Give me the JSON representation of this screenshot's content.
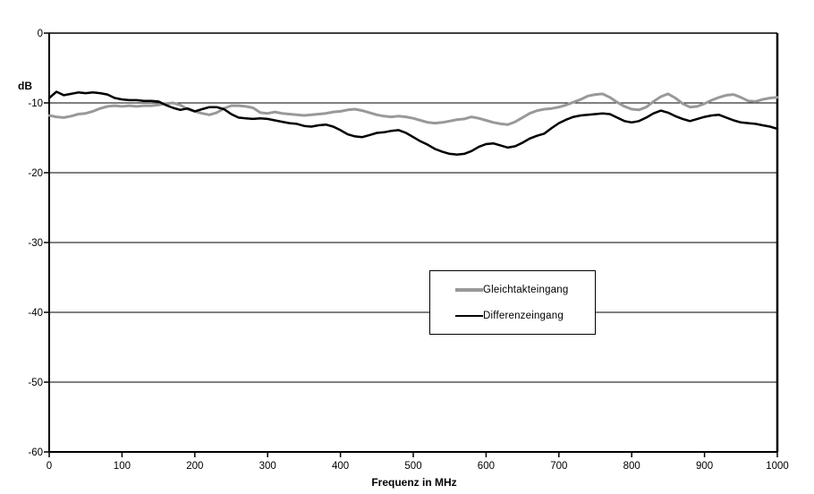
{
  "figure": {
    "y_axis_unit_label": "dB",
    "x_axis_title": "Frequenz in MHz"
  },
  "chart_data": {
    "type": "line",
    "title": "",
    "xlabel": "Frequenz in MHz",
    "ylabel": "dB",
    "xlim": [
      0,
      1000
    ],
    "ylim": [
      -60,
      0
    ],
    "x_ticks": [
      0,
      100,
      200,
      300,
      400,
      500,
      600,
      700,
      800,
      900,
      1000
    ],
    "y_ticks": [
      0,
      -10,
      -20,
      -30,
      -40,
      -50,
      -60
    ],
    "grid": "horizontal",
    "legend_position": "inside-center, boxed",
    "axis_color": "#000000",
    "x_start": 0,
    "x_step": 10,
    "x": [
      0,
      10,
      20,
      30,
      40,
      50,
      60,
      70,
      80,
      90,
      100,
      110,
      120,
      130,
      140,
      150,
      160,
      170,
      180,
      190,
      200,
      210,
      220,
      230,
      240,
      250,
      260,
      270,
      280,
      290,
      300,
      310,
      320,
      330,
      340,
      350,
      360,
      370,
      380,
      390,
      400,
      410,
      420,
      430,
      440,
      450,
      460,
      470,
      480,
      490,
      500,
      510,
      520,
      530,
      540,
      550,
      560,
      570,
      580,
      590,
      600,
      610,
      620,
      630,
      640,
      650,
      660,
      670,
      680,
      690,
      700,
      710,
      720,
      730,
      740,
      750,
      760,
      770,
      780,
      790,
      800,
      810,
      820,
      830,
      840,
      850,
      860,
      870,
      880,
      890,
      900,
      910,
      920,
      930,
      940,
      950,
      960,
      970,
      980,
      990,
      1000
    ],
    "series": [
      {
        "name": "Gleichtakteingang",
        "color": "#999999",
        "stroke_width": 3,
        "values": [
          -11.8,
          -12.0,
          -12.1,
          -11.9,
          -11.6,
          -11.5,
          -11.2,
          -10.8,
          -10.5,
          -10.4,
          -10.5,
          -10.4,
          -10.5,
          -10.4,
          -10.4,
          -10.3,
          -10.1,
          -10.0,
          -10.3,
          -10.9,
          -11.2,
          -11.5,
          -11.7,
          -11.4,
          -10.8,
          -10.4,
          -10.4,
          -10.5,
          -10.7,
          -11.4,
          -11.5,
          -11.3,
          -11.5,
          -11.6,
          -11.7,
          -11.8,
          -11.7,
          -11.6,
          -11.5,
          -11.3,
          -11.2,
          -11.0,
          -10.9,
          -11.1,
          -11.4,
          -11.7,
          -11.9,
          -12.0,
          -11.9,
          -12.0,
          -12.2,
          -12.5,
          -12.8,
          -12.9,
          -12.8,
          -12.6,
          -12.4,
          -12.3,
          -12.0,
          -12.2,
          -12.5,
          -12.8,
          -13.0,
          -13.1,
          -12.7,
          -12.1,
          -11.5,
          -11.1,
          -10.9,
          -10.8,
          -10.6,
          -10.3,
          -9.9,
          -9.5,
          -9.0,
          -8.8,
          -8.7,
          -9.2,
          -9.9,
          -10.5,
          -10.9,
          -11.0,
          -10.6,
          -9.8,
          -9.1,
          -8.7,
          -9.3,
          -10.1,
          -10.6,
          -10.5,
          -10.1,
          -9.6,
          -9.2,
          -8.9,
          -8.8,
          -9.2,
          -9.7,
          -9.8,
          -9.5,
          -9.3,
          -9.2
        ]
      },
      {
        "name": "Differenzeingang",
        "color": "#000000",
        "stroke_width": 2.5,
        "values": [
          -9.3,
          -8.4,
          -8.9,
          -8.7,
          -8.5,
          -8.6,
          -8.5,
          -8.6,
          -8.8,
          -9.3,
          -9.5,
          -9.6,
          -9.6,
          -9.7,
          -9.7,
          -9.8,
          -10.3,
          -10.7,
          -11.0,
          -10.8,
          -11.2,
          -10.9,
          -10.6,
          -10.6,
          -10.9,
          -11.6,
          -12.1,
          -12.2,
          -12.3,
          -12.2,
          -12.3,
          -12.5,
          -12.7,
          -12.9,
          -13.0,
          -13.3,
          -13.4,
          -13.2,
          -13.1,
          -13.4,
          -13.9,
          -14.5,
          -14.8,
          -14.9,
          -14.6,
          -14.3,
          -14.2,
          -14.0,
          -13.9,
          -14.3,
          -14.9,
          -15.5,
          -16.0,
          -16.6,
          -17.0,
          -17.3,
          -17.4,
          -17.3,
          -16.9,
          -16.3,
          -15.9,
          -15.8,
          -16.1,
          -16.4,
          -16.2,
          -15.7,
          -15.1,
          -14.7,
          -14.4,
          -13.6,
          -12.9,
          -12.4,
          -12.0,
          -11.8,
          -11.7,
          -11.6,
          -11.5,
          -11.6,
          -12.1,
          -12.6,
          -12.8,
          -12.6,
          -12.1,
          -11.5,
          -11.1,
          -11.4,
          -11.9,
          -12.3,
          -12.6,
          -12.3,
          -12.0,
          -11.8,
          -11.7,
          -12.1,
          -12.5,
          -12.8,
          -12.9,
          -13.0,
          -13.2,
          -13.4,
          -13.7
        ]
      }
    ]
  }
}
